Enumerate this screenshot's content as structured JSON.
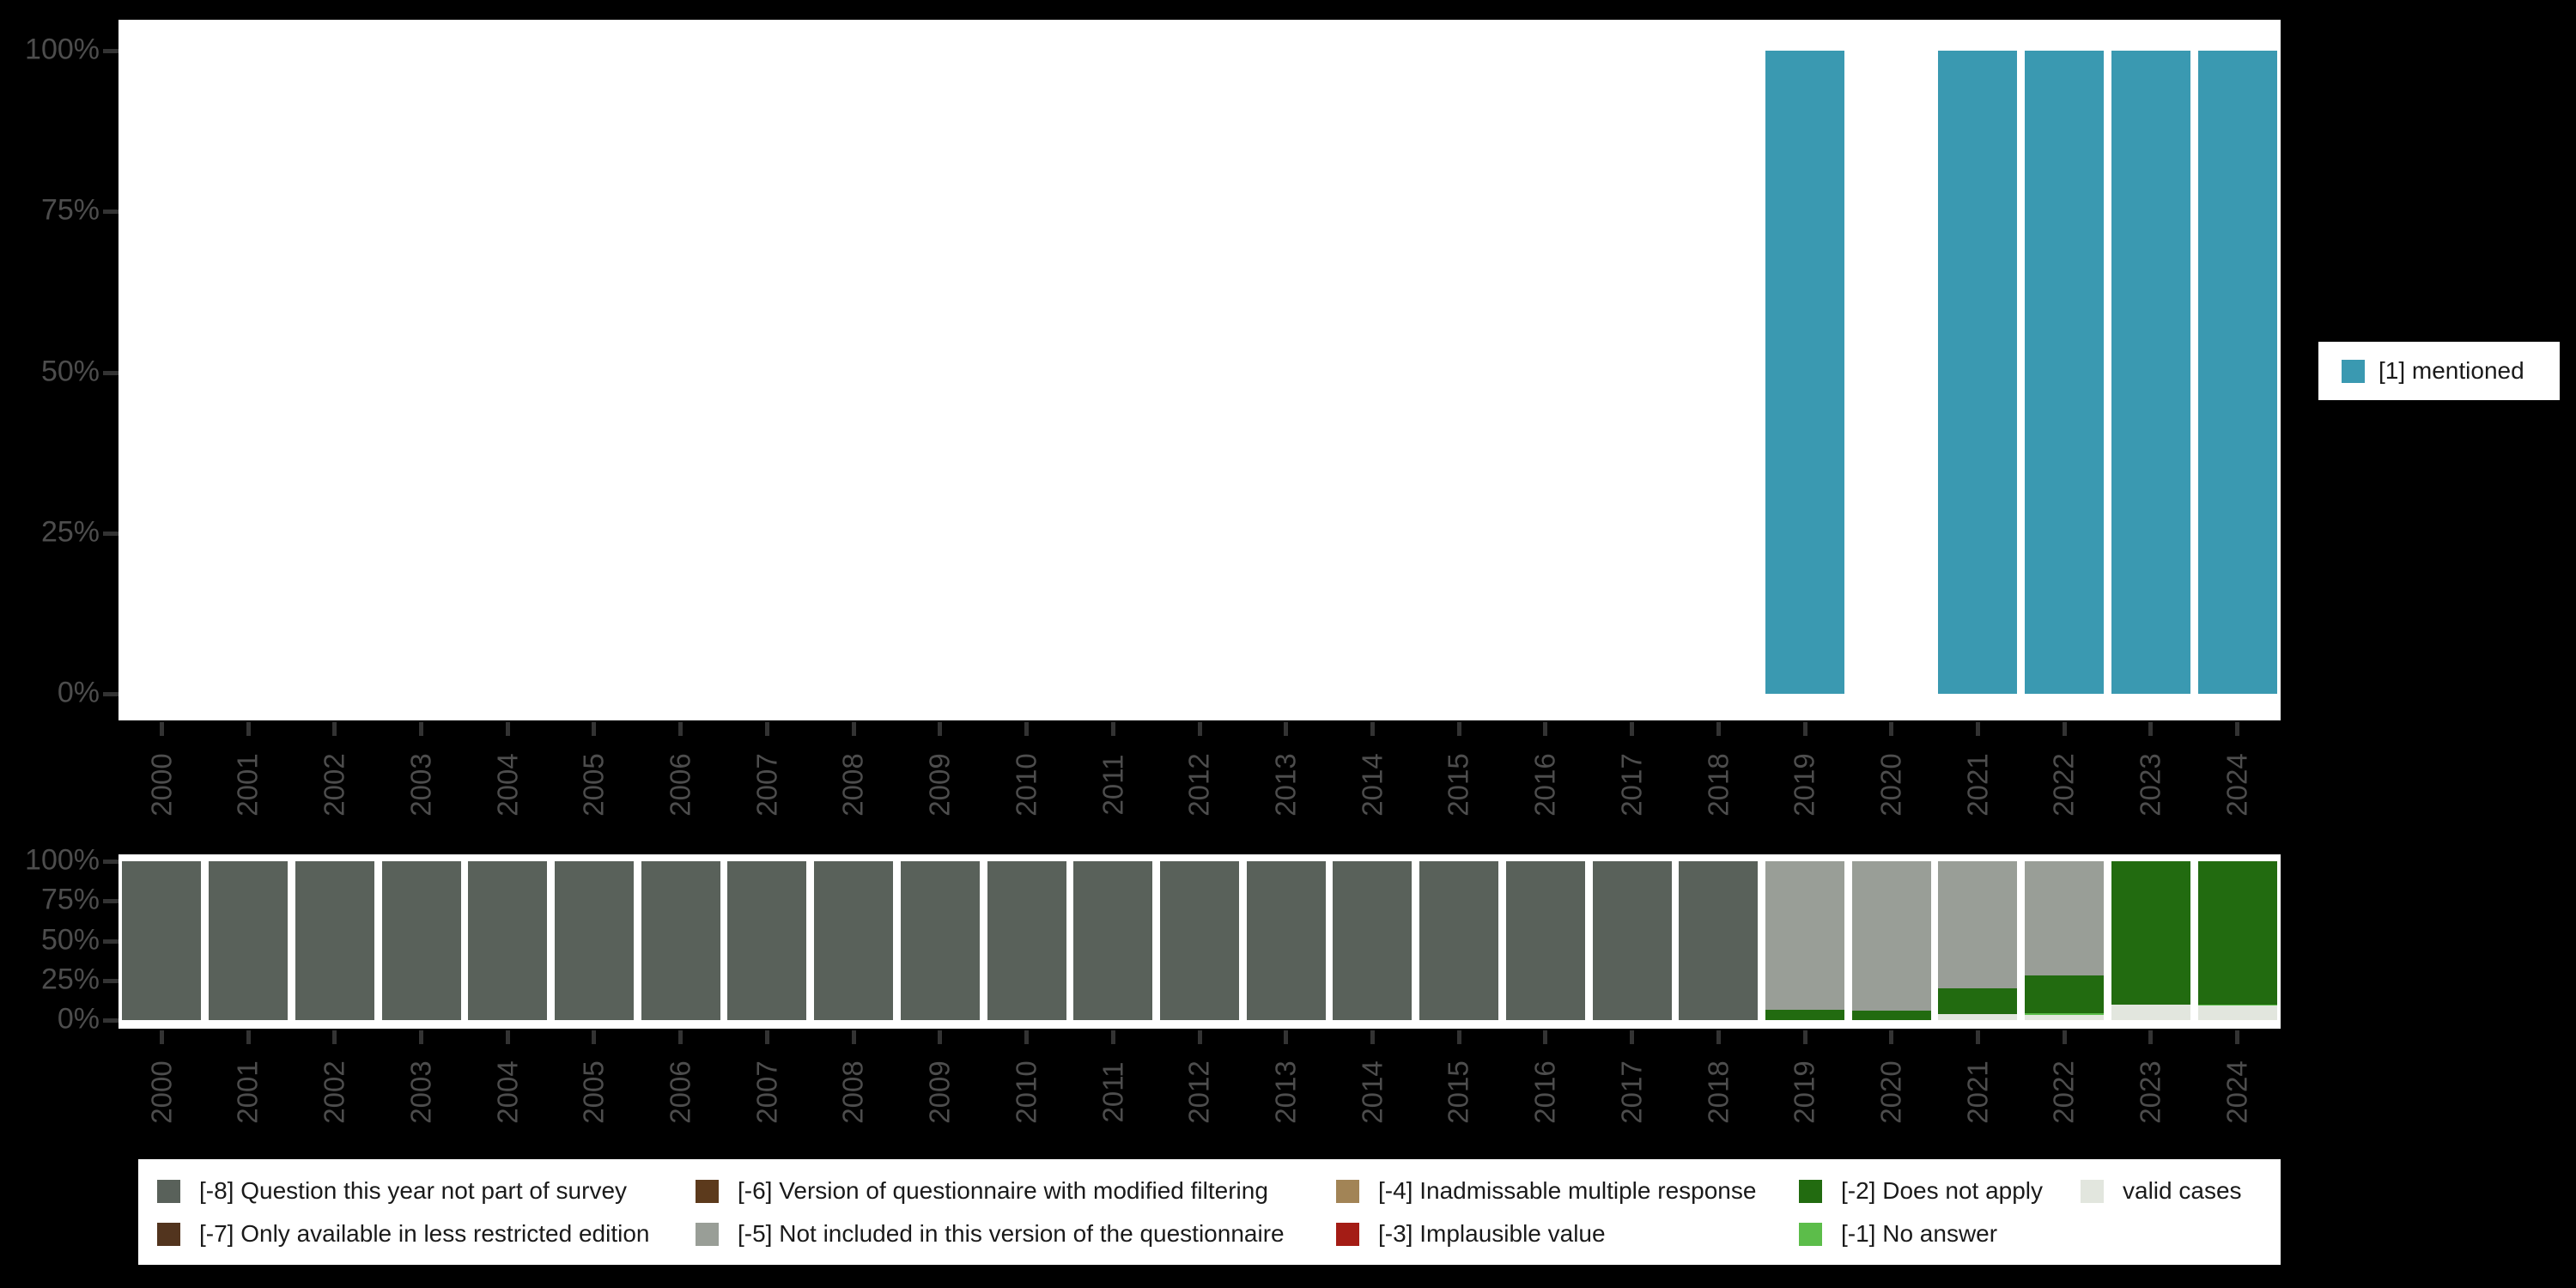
{
  "axis": {
    "y_tick_labels": [
      "100%",
      "75%",
      "50%",
      "25%",
      "0%"
    ],
    "x_tick_labels": [
      "2000",
      "2001",
      "2002",
      "2003",
      "2004",
      "2005",
      "2006",
      "2007",
      "2008",
      "2009",
      "2010",
      "2011",
      "2012",
      "2013",
      "2014",
      "2015",
      "2016",
      "2017",
      "2018",
      "2019",
      "2020",
      "2021",
      "2022",
      "2023",
      "2024"
    ],
    "label_color": "#4d4d4d",
    "tick_color": "#333333"
  },
  "top_legend": {
    "label": "[1] mentioned",
    "swatch_color": "#3A99B1"
  },
  "bottom_legend": {
    "items": [
      {
        "label": "[-8] Question this year not part of survey",
        "color": "#59615A",
        "col": 0,
        "row": 0
      },
      {
        "label": "[-7] Only available in less restricted edition",
        "color": "#52341E",
        "col": 0,
        "row": 1
      },
      {
        "label": "[-6] Version of questionnaire with modified filtering",
        "color": "#5C3A1C",
        "col": 1,
        "row": 0
      },
      {
        "label": "[-5] Not included in this version of the questionnaire",
        "color": "#999E97",
        "col": 1,
        "row": 1
      },
      {
        "label": "[-4] Inadmissable multiple response",
        "color": "#A28456",
        "col": 2,
        "row": 0
      },
      {
        "label": "[-3] Implausible value",
        "color": "#A41C15",
        "col": 2,
        "row": 1
      },
      {
        "label": "[-2] Does not apply",
        "color": "#226B10",
        "col": 3,
        "row": 0
      },
      {
        "label": "[-1] No answer",
        "color": "#5CBD4A",
        "col": 3,
        "row": 1
      },
      {
        "label": "valid cases",
        "color": "#E2E6DE",
        "col": 4,
        "row": 0
      }
    ]
  },
  "chart_data": [
    {
      "type": "bar",
      "title": "",
      "xlabel": "",
      "ylabel": "",
      "categories": [
        "2000",
        "2001",
        "2002",
        "2003",
        "2004",
        "2005",
        "2006",
        "2007",
        "2008",
        "2009",
        "2010",
        "2011",
        "2012",
        "2013",
        "2014",
        "2015",
        "2016",
        "2017",
        "2018",
        "2019",
        "2020",
        "2021",
        "2022",
        "2023",
        "2024"
      ],
      "series": [
        {
          "name": "[1] mentioned",
          "color": "#3A99B1",
          "values": [
            0,
            0,
            0,
            0,
            0,
            0,
            0,
            0,
            0,
            0,
            0,
            0,
            0,
            0,
            0,
            0,
            0,
            0,
            0,
            100,
            0,
            100,
            100,
            100,
            100
          ]
        }
      ],
      "ylim": [
        0,
        100
      ],
      "y_tick_labels": [
        "100%",
        "75%",
        "50%",
        "25%",
        "0%"
      ],
      "grid": false,
      "legend_position": "right"
    },
    {
      "type": "bar",
      "stacked": true,
      "title": "",
      "xlabel": "",
      "ylabel": "",
      "categories": [
        "2000",
        "2001",
        "2002",
        "2003",
        "2004",
        "2005",
        "2006",
        "2007",
        "2008",
        "2009",
        "2010",
        "2011",
        "2012",
        "2013",
        "2014",
        "2015",
        "2016",
        "2017",
        "2018",
        "2019",
        "2020",
        "2021",
        "2022",
        "2023",
        "2024"
      ],
      "series": [
        {
          "name": "[-8] Question this year not part of survey",
          "color": "#59615A",
          "values": [
            100,
            100,
            100,
            100,
            100,
            100,
            100,
            100,
            100,
            100,
            100,
            100,
            100,
            100,
            100,
            100,
            100,
            100,
            100,
            0,
            0,
            0,
            0,
            0,
            0
          ]
        },
        {
          "name": "[-7] Only available in less restricted edition",
          "color": "#52341E",
          "values": [
            0,
            0,
            0,
            0,
            0,
            0,
            0,
            0,
            0,
            0,
            0,
            0,
            0,
            0,
            0,
            0,
            0,
            0,
            0,
            0,
            0,
            0,
            0,
            0,
            0
          ]
        },
        {
          "name": "[-6] Version of questionnaire with modified filtering",
          "color": "#5C3A1C",
          "values": [
            0,
            0,
            0,
            0,
            0,
            0,
            0,
            0,
            0,
            0,
            0,
            0,
            0,
            0,
            0,
            0,
            0,
            0,
            0,
            0,
            0,
            0,
            0,
            0,
            0
          ]
        },
        {
          "name": "[-5] Not included in this version of the questionnaire",
          "color": "#999E97",
          "values": [
            0,
            0,
            0,
            0,
            0,
            0,
            0,
            0,
            0,
            0,
            0,
            0,
            0,
            0,
            0,
            0,
            0,
            0,
            0,
            93.6,
            94,
            80,
            72,
            0,
            0
          ]
        },
        {
          "name": "[-4] Inadmissable multiple response",
          "color": "#A28456",
          "values": [
            0,
            0,
            0,
            0,
            0,
            0,
            0,
            0,
            0,
            0,
            0,
            0,
            0,
            0,
            0,
            0,
            0,
            0,
            0,
            0,
            0,
            0,
            0,
            0,
            0
          ]
        },
        {
          "name": "[-3] Implausible value",
          "color": "#A41C15",
          "values": [
            0,
            0,
            0,
            0,
            0,
            0,
            0,
            0,
            0,
            0,
            0,
            0,
            0,
            0,
            0,
            0,
            0,
            0,
            0,
            0,
            0,
            0,
            0,
            0,
            0
          ]
        },
        {
          "name": "[-2] Does not apply",
          "color": "#226B10",
          "values": [
            0,
            0,
            0,
            0,
            0,
            0,
            0,
            0,
            0,
            0,
            0,
            0,
            0,
            0,
            0,
            0,
            0,
            0,
            0,
            6.4,
            6,
            16,
            23.5,
            90,
            90.5
          ]
        },
        {
          "name": "[-1] No answer",
          "color": "#5CBD4A",
          "values": [
            0,
            0,
            0,
            0,
            0,
            0,
            0,
            0,
            0,
            0,
            0,
            0,
            0,
            0,
            0,
            0,
            0,
            0,
            0,
            0,
            0,
            0,
            1,
            0.5,
            0.5
          ]
        },
        {
          "name": "valid cases",
          "color": "#E2E6DE",
          "values": [
            0,
            0,
            0,
            0,
            0,
            0,
            0,
            0,
            0,
            0,
            0,
            0,
            0,
            0,
            0,
            0,
            0,
            0,
            0,
            0,
            0,
            4,
            3.5,
            9.5,
            9
          ]
        }
      ],
      "ylim": [
        0,
        100
      ],
      "y_tick_labels": [
        "100%",
        "75%",
        "50%",
        "25%",
        "0%"
      ],
      "grid": false,
      "legend_position": "bottom"
    }
  ]
}
